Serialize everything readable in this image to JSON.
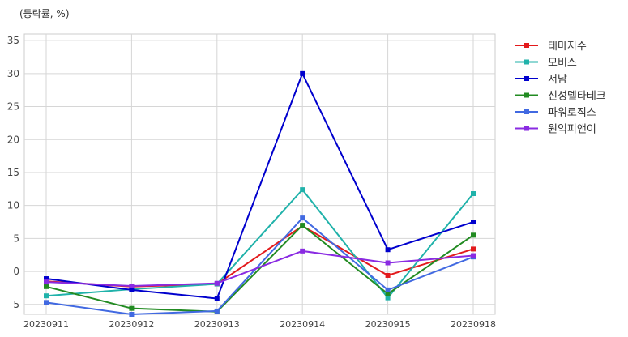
{
  "chart_data": {
    "type": "line",
    "unit_label": "(등락률, %)",
    "categories": [
      "20230911",
      "20230912",
      "20230913",
      "20230914",
      "20230915",
      "20230918"
    ],
    "ylim": [
      -6.5,
      36
    ],
    "yticks": [
      -5,
      0,
      5,
      10,
      15,
      20,
      25,
      30,
      35
    ],
    "grid": true,
    "legend_position": "top-right outside",
    "series": [
      {
        "name": "테마지수",
        "color": "#e31a1c",
        "values": [
          -1.5,
          -2.3,
          -1.9,
          6.9,
          -0.6,
          3.4
        ]
      },
      {
        "name": "모비스",
        "color": "#20b2aa",
        "values": [
          -3.7,
          -2.7,
          -1.9,
          12.4,
          -4.0,
          11.8
        ]
      },
      {
        "name": "서남",
        "color": "#0000cd",
        "values": [
          -1.1,
          -2.8,
          -4.1,
          30.0,
          3.3,
          7.5
        ]
      },
      {
        "name": "신성델타테크",
        "color": "#228b22",
        "values": [
          -2.3,
          -5.6,
          -6.1,
          7.0,
          -3.4,
          5.5
        ]
      },
      {
        "name": "파워로직스",
        "color": "#4169e1",
        "values": [
          -4.7,
          -6.5,
          -6.0,
          8.1,
          -2.8,
          2.2
        ]
      },
      {
        "name": "원익피앤이",
        "color": "#8a2be2",
        "values": [
          -1.6,
          -2.2,
          -1.8,
          3.1,
          1.3,
          2.4
        ]
      }
    ]
  }
}
